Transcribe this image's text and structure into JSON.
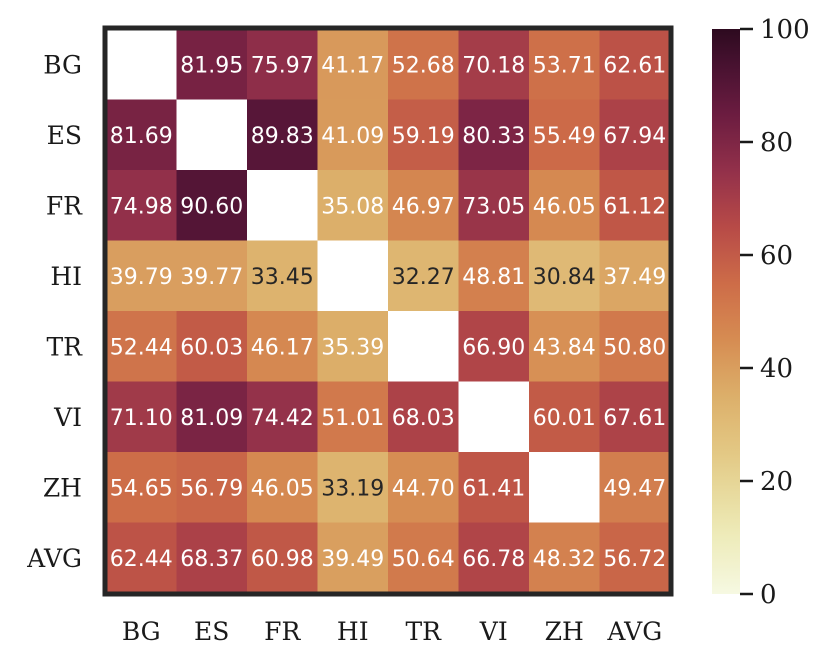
{
  "chart_data": {
    "type": "heatmap",
    "title": "",
    "xlabel": "",
    "ylabel": "",
    "rows": [
      "BG",
      "ES",
      "FR",
      "HI",
      "TR",
      "VI",
      "ZH",
      "AVG"
    ],
    "cols": [
      "BG",
      "ES",
      "FR",
      "HI",
      "TR",
      "VI",
      "ZH",
      "AVG"
    ],
    "values": [
      [
        null,
        81.95,
        75.97,
        41.17,
        52.68,
        70.18,
        53.71,
        62.61
      ],
      [
        81.69,
        null,
        89.83,
        41.09,
        59.19,
        80.33,
        55.49,
        67.94
      ],
      [
        74.98,
        90.6,
        null,
        35.08,
        46.97,
        73.05,
        46.05,
        61.12
      ],
      [
        39.79,
        39.77,
        33.45,
        null,
        32.27,
        48.81,
        30.84,
        37.49
      ],
      [
        52.44,
        60.03,
        46.17,
        35.39,
        null,
        66.9,
        43.84,
        50.8
      ],
      [
        71.1,
        81.09,
        74.42,
        51.01,
        68.03,
        null,
        60.01,
        67.61
      ],
      [
        54.65,
        56.79,
        46.05,
        33.19,
        44.7,
        61.41,
        null,
        49.47
      ],
      [
        62.44,
        68.37,
        60.98,
        39.49,
        50.64,
        66.78,
        48.32,
        56.72
      ]
    ],
    "colorbar": {
      "min": 0,
      "max": 100,
      "ticks": [
        0,
        20,
        40,
        60,
        80,
        100
      ],
      "colormap": "light-yellow-to-dark-burgundy"
    },
    "colors": {
      "low": "#f6f9e2",
      "high": "#2d0a1f",
      "frame": "#262626",
      "missing": "#ffffff"
    }
  }
}
